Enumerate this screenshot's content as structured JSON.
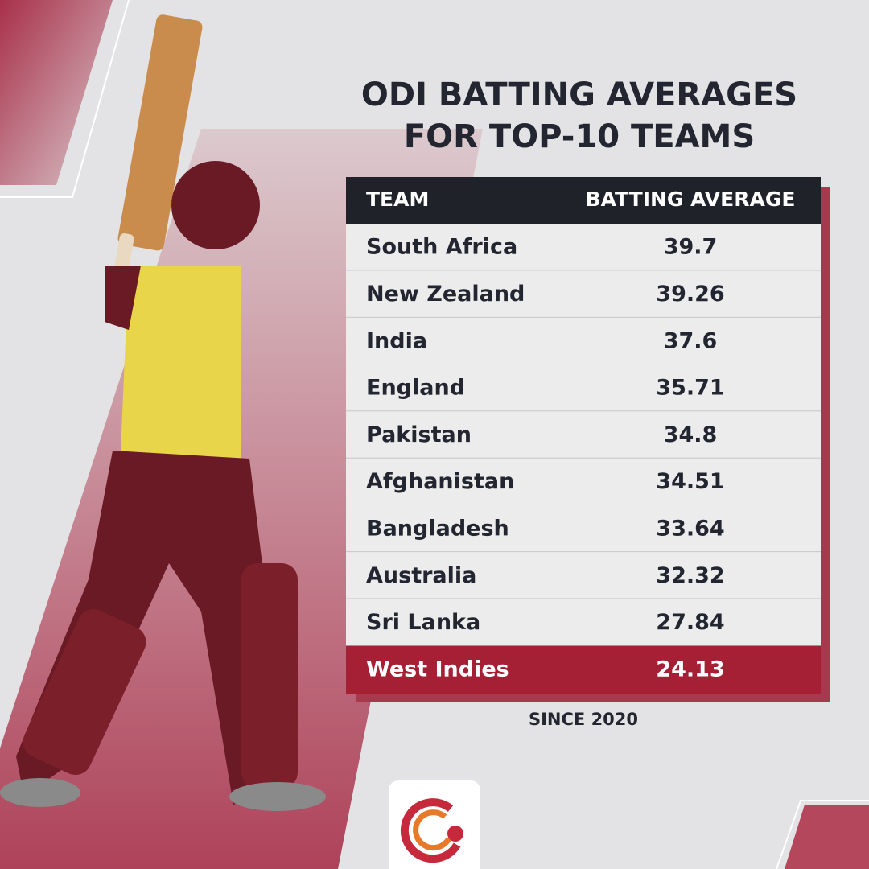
{
  "title": [
    "ODI BATTING AVERAGES",
    "FOR TOP-10 TEAMS"
  ],
  "table": {
    "header": [
      "TEAM",
      "BATTING AVERAGE"
    ],
    "rows": [
      [
        "South Africa",
        39.7
      ],
      [
        "New Zealand",
        39.26
      ],
      [
        "India",
        37.6
      ],
      [
        "England",
        35.71
      ],
      [
        "Pakistan",
        34.8
      ],
      [
        "Afghanistan",
        34.51
      ],
      [
        "Bangladesh",
        33.64
      ],
      [
        "Australia",
        32.32
      ],
      [
        "Sri Lanka",
        27.84
      ],
      [
        "West Indies",
        24.13
      ]
    ]
  },
  "footnote": "SINCE 2020"
}
